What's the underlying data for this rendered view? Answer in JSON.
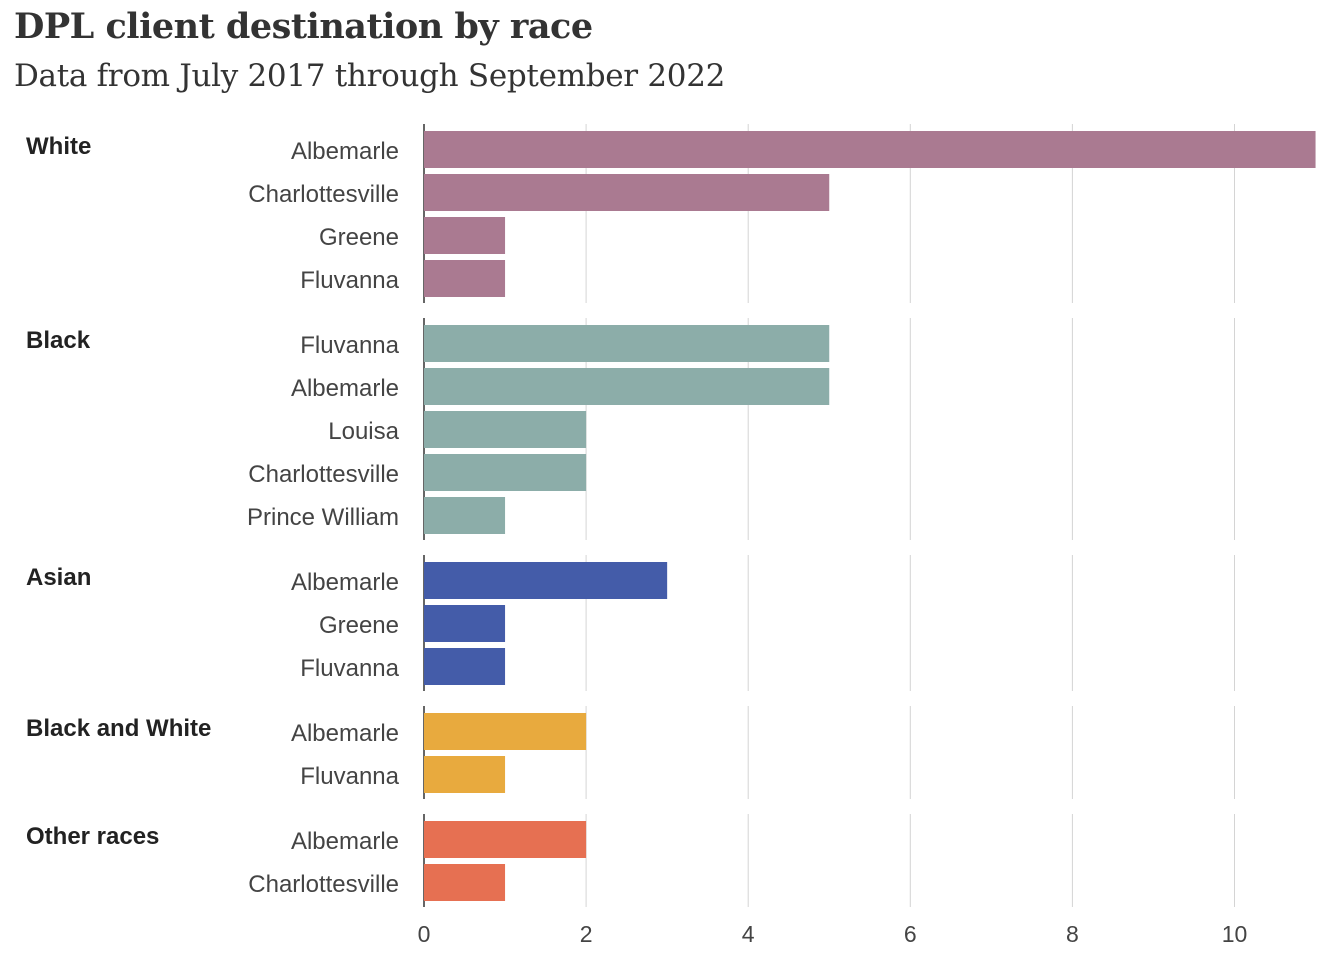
{
  "chart_data": {
    "type": "bar",
    "orientation": "horizontal",
    "title": "DPL client destination by race",
    "subtitle": "Data from July 2017 through September 2022",
    "xlabel": "",
    "ylabel": "",
    "xlim": [
      0,
      11
    ],
    "x_ticks": [
      0,
      2,
      4,
      6,
      8,
      10
    ],
    "grid": true,
    "groups": [
      {
        "name": "White",
        "color": "#aa7a91",
        "categories": [
          "Albemarle",
          "Charlottesville",
          "Greene",
          "Fluvanna"
        ],
        "values": [
          11,
          5,
          1,
          1
        ]
      },
      {
        "name": "Black",
        "color": "#8cada9",
        "categories": [
          "Fluvanna",
          "Albemarle",
          "Louisa",
          "Charlottesville",
          "Prince William"
        ],
        "values": [
          5,
          5,
          2,
          2,
          1
        ]
      },
      {
        "name": "Asian",
        "color": "#445ca9",
        "categories": [
          "Albemarle",
          "Greene",
          "Fluvanna"
        ],
        "values": [
          3,
          1,
          1
        ]
      },
      {
        "name": "Black and White",
        "color": "#e8aa3e",
        "categories": [
          "Albemarle",
          "Fluvanna"
        ],
        "values": [
          2,
          1
        ]
      },
      {
        "name": "Other races",
        "color": "#e67052",
        "categories": [
          "Albemarle",
          "Charlottesville"
        ],
        "values": [
          2,
          1
        ]
      }
    ]
  }
}
